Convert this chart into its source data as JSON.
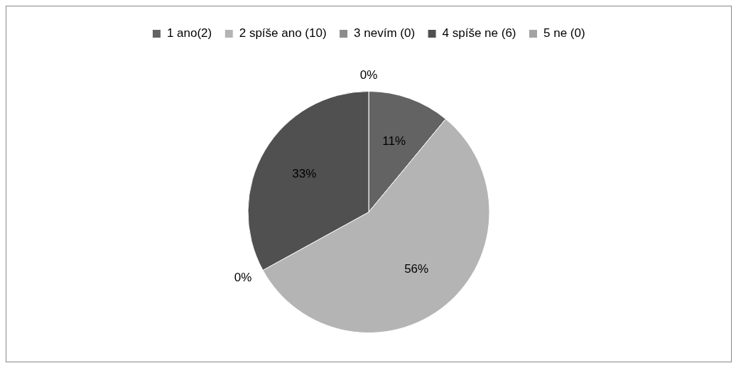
{
  "chart_data": {
    "type": "pie",
    "categories": [
      "1 ano(2)",
      "2 spíše ano (10)",
      "3 nevím (0)",
      "4 spíše ne (6)",
      "5 ne (0)"
    ],
    "values": [
      11,
      56,
      0,
      33,
      0
    ],
    "colors": [
      "#636363",
      "#b4b4b4",
      "#8c8c8c",
      "#505050",
      "#a3a3a3"
    ],
    "value_labels": [
      "11%",
      "56%",
      "0%",
      "33%",
      "0%"
    ],
    "legend": "top"
  }
}
